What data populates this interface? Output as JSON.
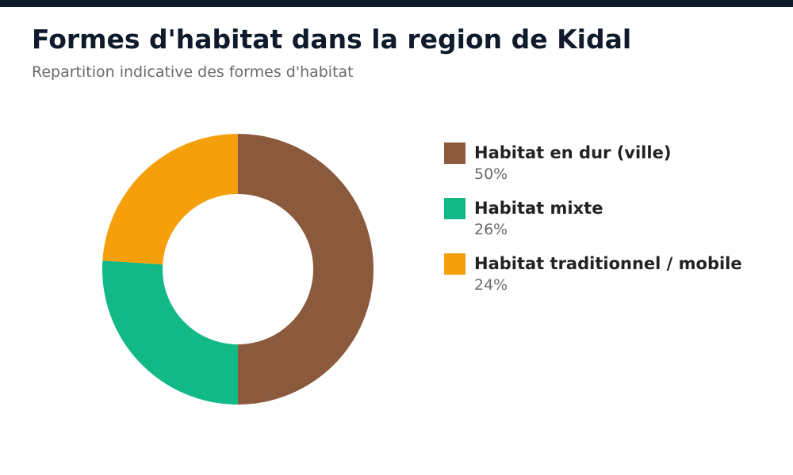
{
  "header": {
    "title": "Formes d'habitat dans la region de Kidal",
    "subtitle": "Repartition indicative des formes d'habitat",
    "bar_color": "#0f1b2b"
  },
  "chart_data": {
    "type": "pie",
    "variant": "donut",
    "title": "Formes d'habitat dans la region de Kidal",
    "subtitle": "Repartition indicative des formes d'habitat",
    "legend_position": "right",
    "slices": [
      {
        "label": "Habitat en dur (ville)",
        "value": 50,
        "value_label": "50%",
        "color": "#8b5a3c"
      },
      {
        "label": "Habitat mixte",
        "value": 26,
        "value_label": "26%",
        "color": "#12b886"
      },
      {
        "label": "Habitat traditionnel / mobile",
        "value": 24,
        "value_label": "24%",
        "color": "#f59f0b"
      }
    ]
  }
}
